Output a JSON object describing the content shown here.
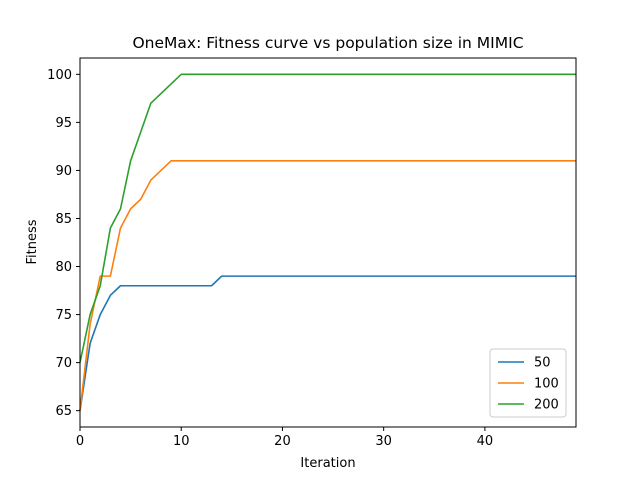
{
  "chart_data": {
    "type": "line",
    "title": "OneMax: Fitness curve vs population size in MIMIC",
    "xlabel": "Iteration",
    "ylabel": "Fitness",
    "xlim": [
      0,
      49
    ],
    "ylim": [
      63.3,
      101.7
    ],
    "xticks": [
      0,
      10,
      20,
      30,
      40
    ],
    "yticks": [
      65,
      70,
      75,
      80,
      85,
      90,
      95,
      100
    ],
    "grid": false,
    "legend_position": "lower-right",
    "x": [
      0,
      1,
      2,
      3,
      4,
      5,
      6,
      7,
      8,
      9,
      10,
      11,
      12,
      13,
      14,
      15,
      16,
      17,
      18,
      19,
      20,
      21,
      22,
      23,
      24,
      25,
      26,
      27,
      28,
      29,
      30,
      31,
      32,
      33,
      34,
      35,
      36,
      37,
      38,
      39,
      40,
      41,
      42,
      43,
      44,
      45,
      46,
      47,
      48,
      49
    ],
    "series": [
      {
        "name": "50",
        "color": "#1f77b4",
        "values": [
          65,
          72,
          75,
          77,
          78,
          78,
          78,
          78,
          78,
          78,
          78,
          78,
          78,
          78,
          79,
          79,
          79,
          79,
          79,
          79,
          79,
          79,
          79,
          79,
          79,
          79,
          79,
          79,
          79,
          79,
          79,
          79,
          79,
          79,
          79,
          79,
          79,
          79,
          79,
          79,
          79,
          79,
          79,
          79,
          79,
          79,
          79,
          79,
          79,
          79
        ]
      },
      {
        "name": "100",
        "color": "#ff7f0e",
        "values": [
          65,
          74,
          79,
          79,
          84,
          86,
          87,
          89,
          90,
          91,
          91,
          91,
          91,
          91,
          91,
          91,
          91,
          91,
          91,
          91,
          91,
          91,
          91,
          91,
          91,
          91,
          91,
          91,
          91,
          91,
          91,
          91,
          91,
          91,
          91,
          91,
          91,
          91,
          91,
          91,
          91,
          91,
          91,
          91,
          91,
          91,
          91,
          91,
          91,
          91
        ]
      },
      {
        "name": "200",
        "color": "#2ca02c",
        "values": [
          70,
          75,
          78,
          84,
          86,
          91,
          94,
          97,
          98,
          99,
          100,
          100,
          100,
          100,
          100,
          100,
          100,
          100,
          100,
          100,
          100,
          100,
          100,
          100,
          100,
          100,
          100,
          100,
          100,
          100,
          100,
          100,
          100,
          100,
          100,
          100,
          100,
          100,
          100,
          100,
          100,
          100,
          100,
          100,
          100,
          100,
          100,
          100,
          100,
          100
        ]
      }
    ]
  }
}
